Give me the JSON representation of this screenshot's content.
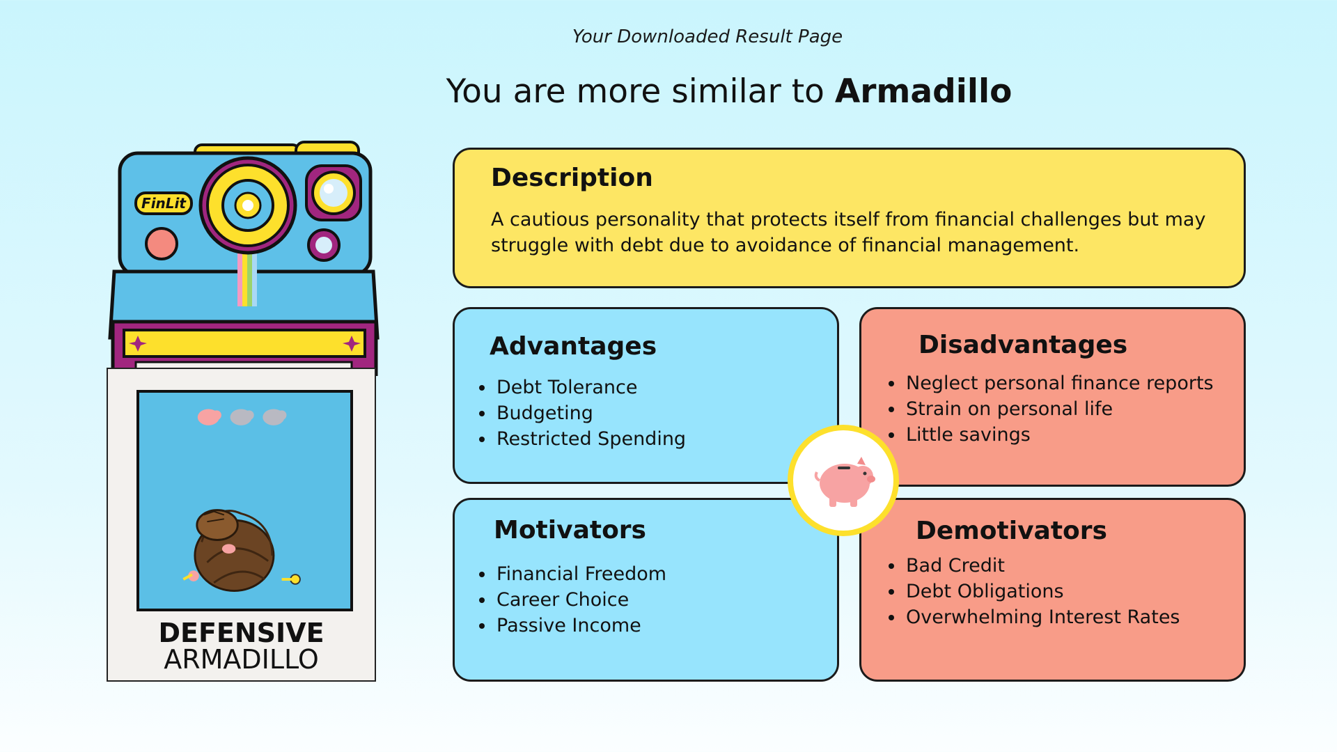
{
  "page": {
    "subtitle": "Your Downloaded Result Page",
    "headline_prefix": "You are more similar to",
    "headline_animal": "Armadillo"
  },
  "card": {
    "camera_brand": "FinLit",
    "title_line1": "DEFENSIVE",
    "title_line2": "ARMADILLO"
  },
  "description": {
    "title": "Description",
    "text": "A cautious personality that protects itself from financial challenges but may struggle with debt due to avoidance of financial management."
  },
  "advantages": {
    "title": "Advantages",
    "items": [
      "Debt Tolerance",
      "Budgeting",
      "Restricted Spending"
    ]
  },
  "disadvantages": {
    "title": "Disadvantages",
    "items": [
      "Neglect personal finance reports",
      "Strain on personal life",
      "Little savings"
    ]
  },
  "motivators": {
    "title": "Motivators",
    "items": [
      "Financial Freedom",
      "Career Choice",
      "Passive Income"
    ]
  },
  "demotivators": {
    "title": "Demotivators",
    "items": [
      "Bad Credit",
      "Debt Obligations",
      "Overwhelming Interest Rates"
    ]
  },
  "rating": {
    "piggy_filled": 1,
    "piggy_total": 3
  },
  "icons": {
    "camera": "instant-camera-icon",
    "badge": "piggy-bank-icon",
    "rating": "piggy-bank-icon",
    "photo": "armadillo-icon"
  },
  "colors": {
    "description_bg": "#fde664",
    "advantages_bg": "#97e4fd",
    "disadvantages_bg": "#f89c88",
    "piggy_pink": "#f7a3a3",
    "badge_ring": "#fde02c"
  }
}
